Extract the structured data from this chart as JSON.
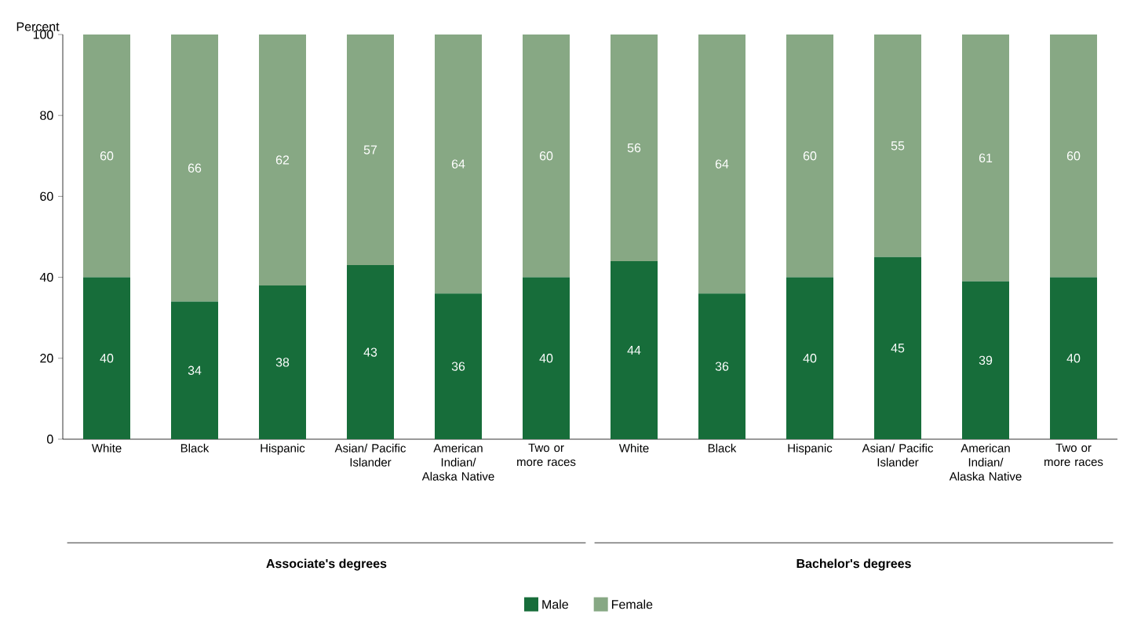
{
  "chart_data": {
    "type": "bar",
    "stacked": true,
    "ylabel": "Percent",
    "categories": [
      "White",
      "Black",
      "Hispanic",
      "Asian/ Pacific Islander",
      "American Indian/ Alaska Native",
      "Two or more races",
      "White",
      "Black",
      "Hispanic",
      "Asian/ Pacific Islander",
      "American Indian/ Alaska Native",
      "Two or more races"
    ],
    "series": [
      {
        "name": "Male",
        "color": "#176d3a",
        "values": [
          40,
          34,
          38,
          43,
          36,
          40,
          44,
          36,
          40,
          45,
          39,
          40
        ]
      },
      {
        "name": "Female",
        "color": "#87a884",
        "values": [
          60,
          66,
          62,
          57,
          64,
          60,
          56,
          64,
          60,
          55,
          61,
          60
        ]
      }
    ],
    "ylim": [
      0,
      100
    ],
    "yticks": [
      0,
      20,
      40,
      60,
      80,
      100
    ],
    "data_labels": true,
    "legend": "bottom",
    "grid": false,
    "annotations": [
      "Associate's degrees",
      "Bachelor's degrees"
    ]
  }
}
